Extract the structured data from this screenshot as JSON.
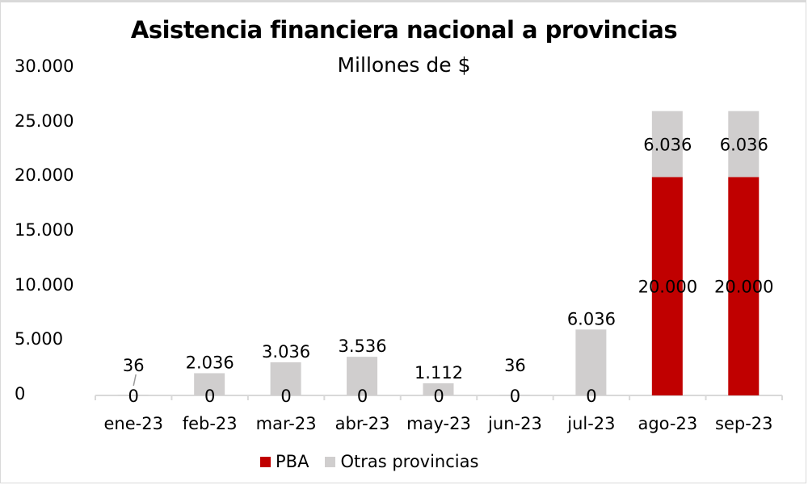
{
  "chart_data": {
    "type": "bar",
    "stacked": true,
    "title": "Asistencia financiera nacional a provincias",
    "subtitle": "Millones de $",
    "xlabel": "",
    "ylabel": "",
    "ylim": [
      0,
      30000
    ],
    "yticks": [
      "0",
      "5.000",
      "10.000",
      "15.000",
      "20.000",
      "25.000",
      "30.000"
    ],
    "categories": [
      "ene-23",
      "feb-23",
      "mar-23",
      "abr-23",
      "may-23",
      "jun-23",
      "jul-23",
      "ago-23",
      "sep-23"
    ],
    "series": [
      {
        "name": "PBA",
        "color": "#c00000",
        "values": [
          0,
          0,
          0,
          0,
          0,
          0,
          0,
          20000,
          20000
        ],
        "labels": [
          "0",
          "0",
          "0",
          "0",
          "0",
          "0",
          "0",
          "20.000",
          "20.000"
        ]
      },
      {
        "name": "Otras provincias",
        "color": "#d0cece",
        "values": [
          36,
          2036,
          3036,
          3536,
          1112,
          36,
          6036,
          6036,
          6036
        ],
        "labels": [
          "36",
          "2.036",
          "3.036",
          "3.536",
          "1.112",
          "36",
          "6.036",
          "6.036",
          "6.036"
        ]
      }
    ],
    "legend_position": "bottom",
    "grid": false
  }
}
